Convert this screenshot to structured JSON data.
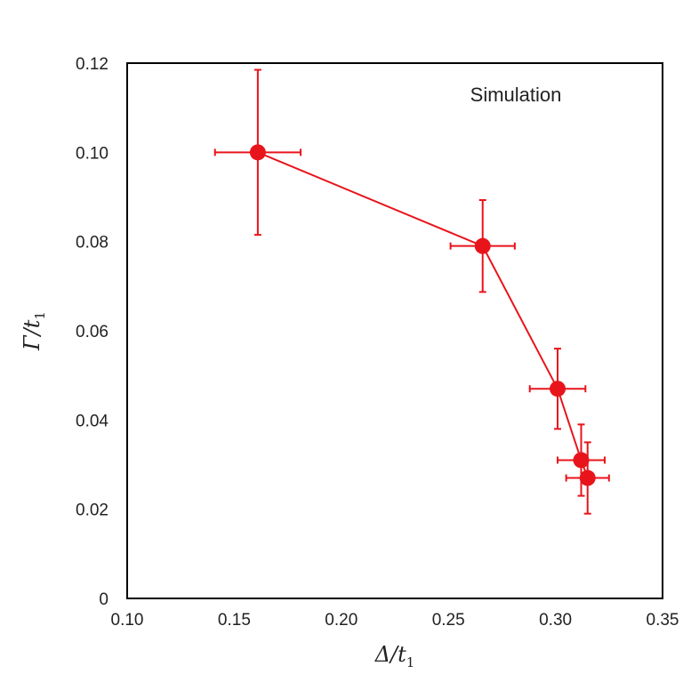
{
  "chart_data": {
    "type": "scatter",
    "title": "",
    "annotation": "Simulation",
    "xlabel": {
      "main": "Δ/t",
      "sub": "1"
    },
    "ylabel": {
      "main": "Γ/t",
      "sub": "1"
    },
    "xlim": [
      0.1,
      0.35
    ],
    "ylim": [
      0,
      0.12
    ],
    "x_ticks": [
      "0.10",
      "0.15",
      "0.20",
      "0.25",
      "0.30",
      "0.35"
    ],
    "y_ticks": [
      "0",
      "0.02",
      "0.04",
      "0.06",
      "0.08",
      "0.10",
      "0.12"
    ],
    "grid": false,
    "connected": true,
    "color": "#e8141b",
    "series": [
      {
        "points": [
          {
            "x": 0.161,
            "y": 0.1,
            "xerr": 0.02,
            "yerr": 0.0185
          },
          {
            "x": 0.266,
            "y": 0.079,
            "xerr": 0.015,
            "yerr": 0.0103
          },
          {
            "x": 0.301,
            "y": 0.047,
            "xerr": 0.013,
            "yerr": 0.009
          },
          {
            "x": 0.312,
            "y": 0.031,
            "xerr": 0.011,
            "yerr": 0.008
          },
          {
            "x": 0.315,
            "y": 0.027,
            "xerr": 0.01,
            "yerr": 0.008
          }
        ]
      }
    ]
  }
}
